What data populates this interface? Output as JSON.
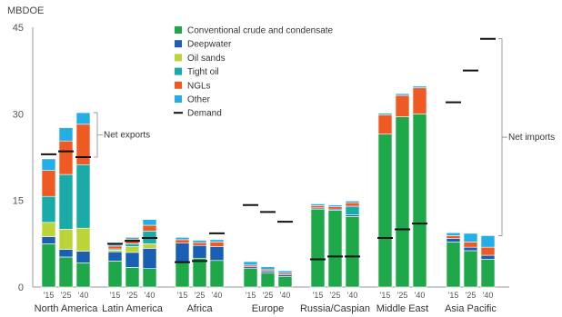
{
  "chart_data": {
    "type": "bar",
    "unit_label": "MBDOE",
    "ylim": [
      0,
      45
    ],
    "y_ticks": [
      0,
      15,
      30,
      45
    ],
    "year_labels": [
      "'15",
      "'25",
      "'40"
    ],
    "categories": [
      "North America",
      "Latin America",
      "Africa",
      "Europe",
      "Russia/Caspian",
      "Middle East",
      "Asia Pacific"
    ],
    "series": [
      {
        "name": "Conventional crude and condensate",
        "color": "#1ea84a",
        "values": [
          [
            7.5,
            5.2,
            4.2
          ],
          [
            4.5,
            3.4,
            3.2
          ],
          [
            4.3,
            5.0,
            4.6
          ],
          [
            3.2,
            2.4,
            1.8
          ],
          [
            13.5,
            13.3,
            12.2
          ],
          [
            26.5,
            29.5,
            30.0
          ],
          [
            7.8,
            6.3,
            4.8
          ]
        ]
      },
      {
        "name": "Deepwater",
        "color": "#1a5fb4",
        "values": [
          [
            1.2,
            1.3,
            2.0
          ],
          [
            1.6,
            2.6,
            3.5
          ],
          [
            3.3,
            2.2,
            2.4
          ],
          [
            0.3,
            0.3,
            0.3
          ],
          [
            0.2,
            0.2,
            0.3
          ],
          [
            0.0,
            0.0,
            0.0
          ],
          [
            0.6,
            0.6,
            0.7
          ]
        ]
      },
      {
        "name": "Oil sands",
        "color": "#bcd43a",
        "values": [
          [
            2.5,
            3.5,
            4.0
          ],
          [
            0.3,
            1.0,
            0.8
          ],
          [
            0.0,
            0.0,
            0.0
          ],
          [
            0.0,
            0.0,
            0.0
          ],
          [
            0.0,
            0.0,
            0.0
          ],
          [
            0.0,
            0.0,
            0.0
          ],
          [
            0.0,
            0.0,
            0.0
          ]
        ]
      },
      {
        "name": "Tight oil",
        "color": "#1aaaa8",
        "values": [
          [
            4.5,
            9.5,
            11.0
          ],
          [
            0.2,
            0.5,
            2.2
          ],
          [
            0.0,
            0.0,
            0.0
          ],
          [
            0.0,
            0.0,
            0.0
          ],
          [
            0.0,
            0.0,
            1.5
          ],
          [
            0.0,
            0.0,
            0.0
          ],
          [
            0.0,
            0.0,
            0.0
          ]
        ]
      },
      {
        "name": "NGLs",
        "color": "#ef5a24",
        "values": [
          [
            4.5,
            5.8,
            7.0
          ],
          [
            0.5,
            0.8,
            1.0
          ],
          [
            0.6,
            0.5,
            0.8
          ],
          [
            0.3,
            0.3,
            0.3
          ],
          [
            0.4,
            0.4,
            0.6
          ],
          [
            3.3,
            3.7,
            4.5
          ],
          [
            0.5,
            0.9,
            1.4
          ]
        ]
      },
      {
        "name": "Other",
        "color": "#24aee6",
        "values": [
          [
            2.0,
            2.3,
            2.0
          ],
          [
            0.3,
            0.3,
            1.0
          ],
          [
            0.4,
            0.4,
            0.4
          ],
          [
            0.6,
            0.5,
            0.4
          ],
          [
            0.3,
            0.3,
            0.3
          ],
          [
            0.3,
            0.3,
            0.3
          ],
          [
            0.5,
            1.5,
            2.0
          ]
        ]
      }
    ],
    "demand": [
      [
        23.0,
        23.5,
        22.5
      ],
      [
        7.5,
        8.0,
        8.5
      ],
      [
        4.3,
        4.5,
        9.3
      ],
      [
        14.2,
        13.0,
        11.3
      ],
      [
        4.8,
        5.3,
        5.3
      ],
      [
        8.5,
        10.0,
        11.0
      ],
      [
        32.0,
        37.5,
        43.0
      ]
    ],
    "legend_items": [
      {
        "label": "Conventional crude and condensate",
        "color": "#1ea84a",
        "kind": "box"
      },
      {
        "label": "Deepwater",
        "color": "#1a5fb4",
        "kind": "box"
      },
      {
        "label": "Oil sands",
        "color": "#bcd43a",
        "kind": "box"
      },
      {
        "label": "Tight oil",
        "color": "#1aaaa8",
        "kind": "box"
      },
      {
        "label": "NGLs",
        "color": "#ef5a24",
        "kind": "box"
      },
      {
        "label": "Other",
        "color": "#24aee6",
        "kind": "box"
      },
      {
        "label": "Demand",
        "color": "#111111",
        "kind": "line"
      }
    ],
    "legend_position": "top-center",
    "annotations": [
      {
        "text": "Net exports",
        "region": "North America"
      },
      {
        "text": "Net imports",
        "region": "Asia Pacific"
      }
    ],
    "grid": false
  }
}
